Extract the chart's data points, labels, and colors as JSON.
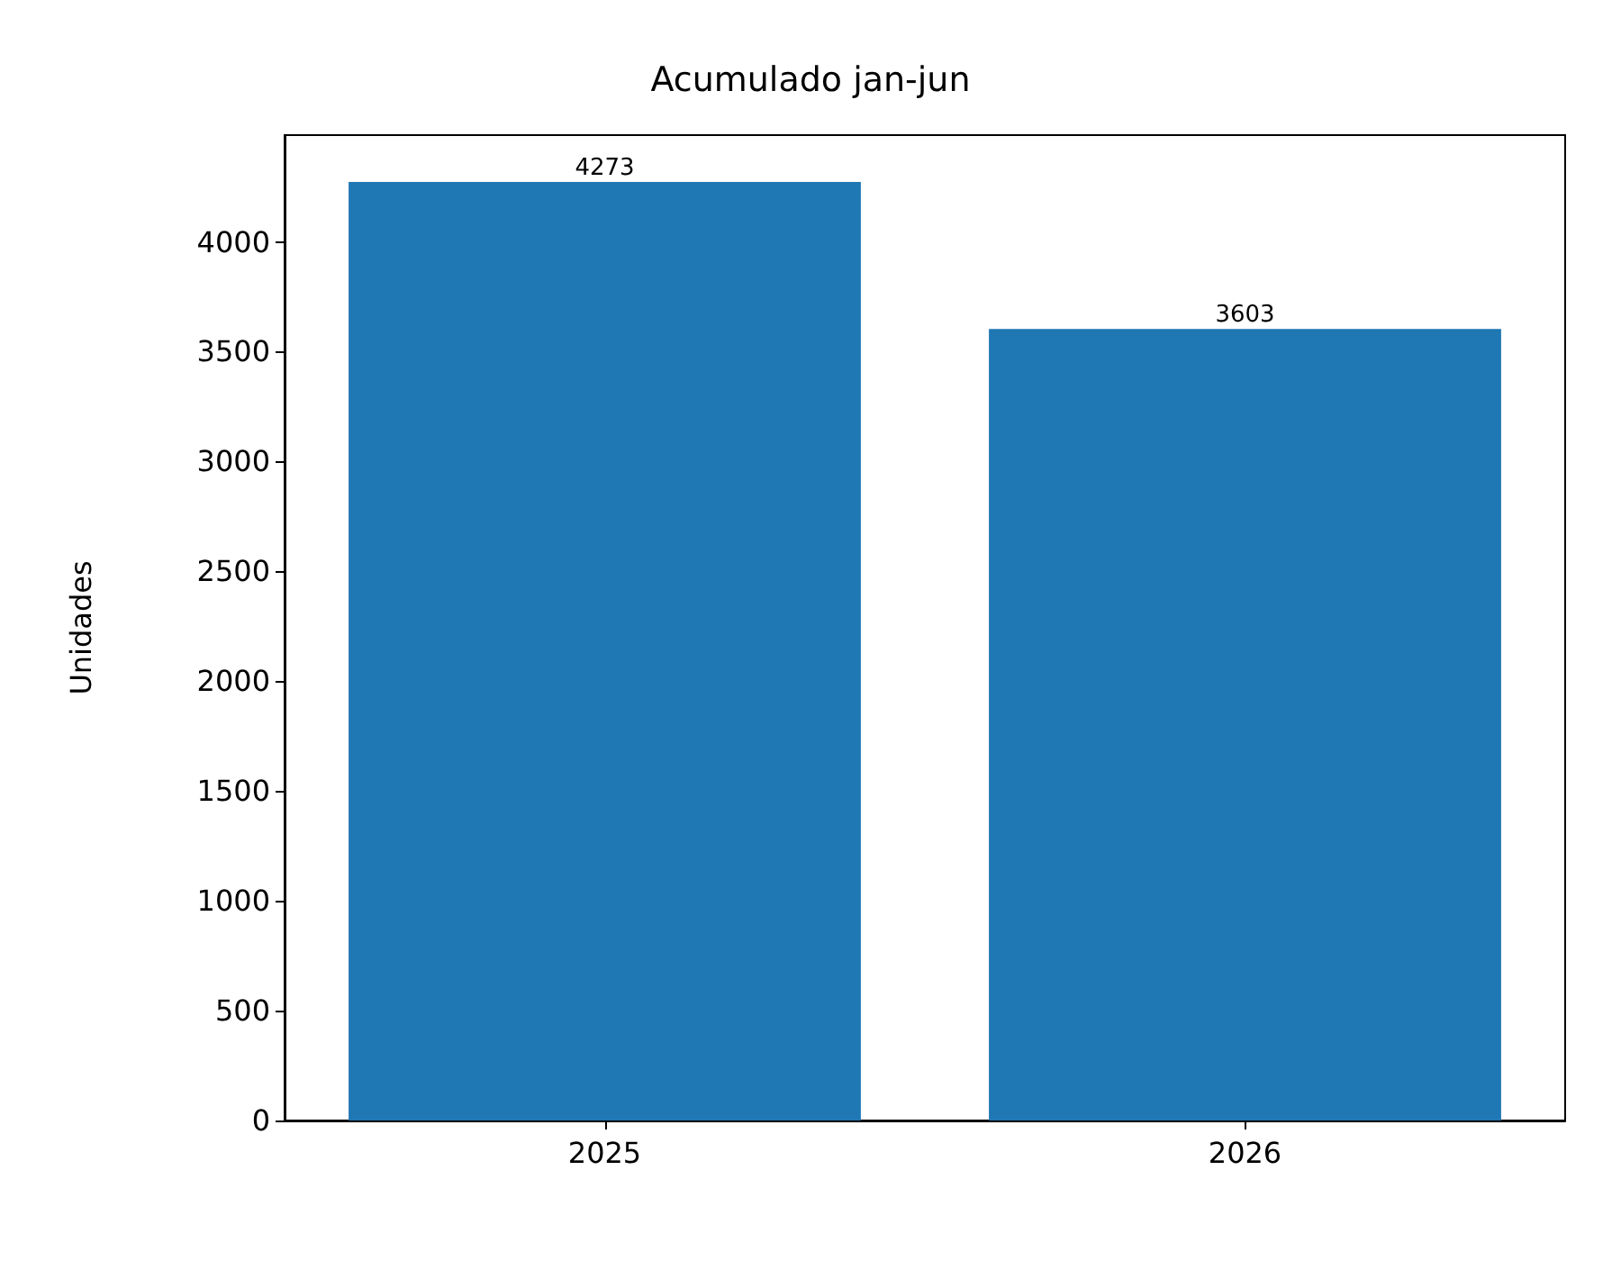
{
  "chart_data": {
    "type": "bar",
    "title": "Acumulado jan-jun",
    "ylabel": "Unidades",
    "categories": [
      "2025",
      "2026"
    ],
    "values": [
      4273,
      3603
    ],
    "color": "#1f77b4",
    "data_labels": true,
    "grid": false,
    "ylim": [
      0,
      4486
    ],
    "yticks": [
      0,
      500,
      1000,
      1500,
      2000,
      2500,
      3000,
      3500,
      4000
    ]
  }
}
